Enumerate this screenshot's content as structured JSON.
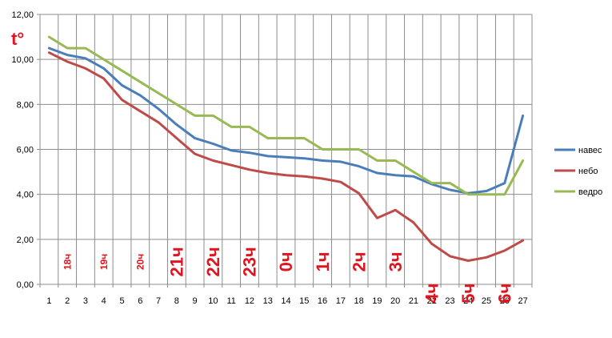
{
  "chart_data": {
    "type": "line",
    "x": [
      1,
      2,
      3,
      4,
      5,
      6,
      7,
      8,
      9,
      10,
      11,
      12,
      13,
      14,
      15,
      16,
      17,
      18,
      19,
      20,
      21,
      22,
      23,
      24,
      25,
      26,
      27
    ],
    "x_tick_labels": [
      "1",
      "2",
      "3",
      "4",
      "5",
      "6",
      "7",
      "8",
      "9",
      "10",
      "11",
      "12",
      "13",
      "14",
      "15",
      "16",
      "17",
      "18",
      "19",
      "20",
      "21",
      "22",
      "23",
      "24",
      "25",
      "26",
      "27"
    ],
    "ylim": [
      0,
      12
    ],
    "y_tick_labels": [
      "0,00",
      "2,00",
      "4,00",
      "6,00",
      "8,00",
      "10,00",
      "12,00"
    ],
    "y_unit_label": "t°",
    "grid": true,
    "legend_position": "right",
    "series": [
      {
        "name": "навес",
        "color": "#4a7ebb",
        "values": [
          10.5,
          10.2,
          10.05,
          9.6,
          8.85,
          8.4,
          7.8,
          7.1,
          6.5,
          6.25,
          5.95,
          5.85,
          5.7,
          5.65,
          5.6,
          5.5,
          5.45,
          5.25,
          4.95,
          4.85,
          4.8,
          4.45,
          4.2,
          4.05,
          4.15,
          4.5,
          7.5
        ]
      },
      {
        "name": "небо",
        "color": "#be4b48",
        "values": [
          10.3,
          9.9,
          9.6,
          9.15,
          8.2,
          7.7,
          7.2,
          6.5,
          5.8,
          5.5,
          5.3,
          5.1,
          4.95,
          4.85,
          4.8,
          4.7,
          4.55,
          4.05,
          2.95,
          3.3,
          2.75,
          1.8,
          1.25,
          1.05,
          1.2,
          1.5,
          1.95
        ]
      },
      {
        "name": "ведро",
        "color": "#98b954",
        "values": [
          11.0,
          10.5,
          10.5,
          10.0,
          9.5,
          9.0,
          8.5,
          8.0,
          7.5,
          7.5,
          7.0,
          7.0,
          6.5,
          6.5,
          6.5,
          6.0,
          6.0,
          6.0,
          5.5,
          5.5,
          5.0,
          4.5,
          4.5,
          4.0,
          4.0,
          4.0,
          5.5
        ]
      }
    ],
    "annotations": [
      {
        "text": "18ч",
        "x": 2,
        "y": 1.0,
        "size": "small"
      },
      {
        "text": "19ч",
        "x": 4,
        "y": 1.0,
        "size": "small"
      },
      {
        "text": "20ч",
        "x": 6,
        "y": 1.0,
        "size": "small"
      },
      {
        "text": "21ч",
        "x": 8,
        "y": 1.0,
        "size": "large"
      },
      {
        "text": "22ч",
        "x": 10,
        "y": 1.0,
        "size": "large"
      },
      {
        "text": "23ч",
        "x": 12,
        "y": 1.0,
        "size": "large"
      },
      {
        "text": "0ч",
        "x": 14,
        "y": 1.0,
        "size": "large"
      },
      {
        "text": "1ч",
        "x": 16,
        "y": 1.0,
        "size": "large"
      },
      {
        "text": "2ч",
        "x": 18,
        "y": 1.0,
        "size": "large"
      },
      {
        "text": "3ч",
        "x": 20,
        "y": 1.0,
        "size": "large"
      },
      {
        "text": "4ч",
        "x": 22,
        "y": -0.4,
        "size": "large"
      },
      {
        "text": "5ч",
        "x": 24,
        "y": -0.4,
        "size": "large"
      },
      {
        "text": "6ч",
        "x": 26,
        "y": -0.4,
        "size": "large"
      }
    ]
  }
}
